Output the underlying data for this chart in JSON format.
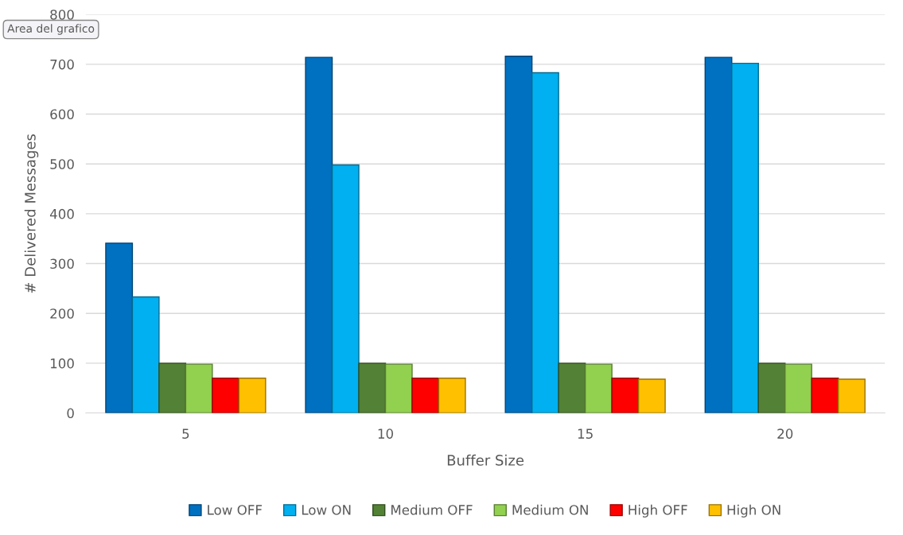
{
  "chart_data": {
    "type": "bar",
    "xlabel": "Buffer Size",
    "ylabel": "# Delivered Messages",
    "categories": [
      "5",
      "10",
      "15",
      "20"
    ],
    "series": [
      {
        "name": "Low OFF",
        "color": "#0070c0",
        "values": [
          341,
          714,
          716,
          714
        ]
      },
      {
        "name": "Low ON",
        "color": "#00b0f0",
        "values": [
          233,
          498,
          683,
          702
        ]
      },
      {
        "name": "Medium OFF",
        "color": "#538135",
        "values": [
          100,
          100,
          100,
          100
        ]
      },
      {
        "name": "Medium ON",
        "color": "#92d050",
        "values": [
          98,
          98,
          98,
          98
        ]
      },
      {
        "name": "High OFF",
        "color": "#ff0000",
        "values": [
          70,
          70,
          70,
          70
        ]
      },
      {
        "name": "High ON",
        "color": "#ffc000",
        "values": [
          70,
          70,
          68,
          68
        ]
      }
    ],
    "ylim": [
      0,
      800
    ],
    "yticks": [
      0,
      100,
      200,
      300,
      400,
      500,
      600,
      700,
      800
    ],
    "grid": "y",
    "legend": "bottom",
    "annotations": [
      "Area del grafico"
    ]
  }
}
